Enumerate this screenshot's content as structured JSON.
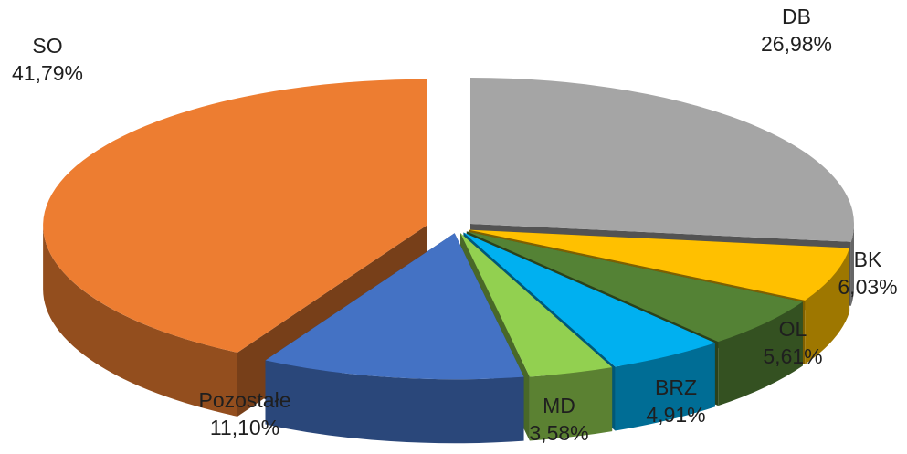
{
  "chart_data": {
    "type": "pie",
    "style": "3d-exploded",
    "title": "",
    "slices": [
      {
        "name": "DB",
        "value": 26.98,
        "value_label": "26,98%",
        "color": "#a5a5a5"
      },
      {
        "name": "BK",
        "value": 6.03,
        "value_label": "6,03%",
        "color": "#ffc000"
      },
      {
        "name": "OL",
        "value": 5.61,
        "value_label": "5,61%",
        "color": "#548235"
      },
      {
        "name": "BRZ",
        "value": 4.91,
        "value_label": "4,91%",
        "color": "#00b0f0"
      },
      {
        "name": "MD",
        "value": 3.58,
        "value_label": "3,58%",
        "color": "#92d050"
      },
      {
        "name": "Pozostałe",
        "value": 11.1,
        "value_label": "11,10%",
        "color": "#4472c4"
      },
      {
        "name": "SO",
        "value": 41.79,
        "value_label": "41,79%",
        "color": "#ed7d31"
      }
    ]
  }
}
